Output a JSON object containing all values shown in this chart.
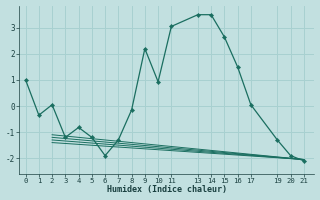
{
  "xlabel": "Humidex (Indice chaleur)",
  "bg_color": "#c2e0e0",
  "grid_color": "#a8d0d0",
  "line_color": "#1a6e60",
  "main_x": [
    0,
    1,
    2,
    3,
    4,
    5,
    6,
    7,
    8,
    9,
    10,
    11,
    13,
    14,
    15,
    16,
    17,
    19,
    20,
    21
  ],
  "main_y": [
    1.0,
    -0.35,
    0.05,
    -1.2,
    -0.82,
    -1.2,
    -1.9,
    -1.3,
    -0.15,
    2.2,
    0.93,
    3.05,
    3.5,
    3.5,
    2.65,
    1.5,
    0.05,
    -1.3,
    -1.9,
    -2.1
  ],
  "flat_lines": [
    {
      "x": [
        2,
        21
      ],
      "y": [
        -1.1,
        -2.05
      ]
    },
    {
      "x": [
        2,
        21
      ],
      "y": [
        -1.2,
        -2.05
      ]
    },
    {
      "x": [
        2,
        21
      ],
      "y": [
        -1.3,
        -2.05
      ]
    },
    {
      "x": [
        2,
        21
      ],
      "y": [
        -1.4,
        -2.05
      ]
    }
  ],
  "xticks": [
    0,
    1,
    2,
    3,
    4,
    5,
    6,
    7,
    8,
    9,
    10,
    11,
    13,
    14,
    15,
    16,
    17,
    19,
    20,
    21
  ],
  "xlim": [
    -0.5,
    21.8
  ],
  "ylim": [
    -2.6,
    3.85
  ],
  "yticks": [
    -2,
    -1,
    0,
    1,
    2,
    3
  ]
}
